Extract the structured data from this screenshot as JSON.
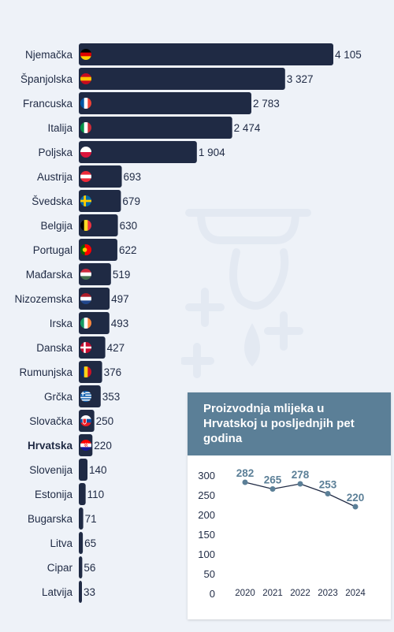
{
  "chart_data": [
    {
      "type": "bar",
      "orientation": "horizontal",
      "categories": [
        "Njemačka",
        "Španjolska",
        "Francuska",
        "Italija",
        "Poljska",
        "Austrija",
        "Švedska",
        "Belgija",
        "Portugal",
        "Mađarska",
        "Nizozemska",
        "Irska",
        "Danska",
        "Rumunjska",
        "Grčka",
        "Slovačka",
        "Hrvatska",
        "Slovenija",
        "Estonija",
        "Bugarska",
        "Litva",
        "Cipar",
        "Latvija"
      ],
      "values": [
        4105,
        3327,
        2783,
        2474,
        1904,
        693,
        679,
        630,
        622,
        519,
        497,
        493,
        427,
        376,
        353,
        250,
        220,
        140,
        110,
        71,
        65,
        56,
        33
      ],
      "value_labels": [
        "4 105",
        "3 327",
        "2 783",
        "2 474",
        "1 904",
        "693",
        "679",
        "630",
        "622",
        "519",
        "497",
        "493",
        "427",
        "376",
        "353",
        "250",
        "220",
        "140",
        "110",
        "71",
        "65",
        "56",
        "33"
      ],
      "highlight": "Hrvatska",
      "flags": [
        "de",
        "es",
        "fr",
        "it",
        "pl",
        "at",
        "se",
        "be",
        "pt",
        "hu",
        "nl",
        "ie",
        "dk",
        "ro",
        "gr",
        "sk",
        "hr"
      ],
      "bar_color": "#1f2a44"
    },
    {
      "type": "line",
      "title": "Proizvodnja mlijeka u Hrvatskoj u posljednjih pet godina",
      "x": [
        "2020",
        "2021",
        "2022",
        "2023",
        "2024"
      ],
      "values": [
        282,
        265,
        278,
        253,
        220
      ],
      "ylim": [
        0,
        300
      ],
      "yticks": [
        "300",
        "250",
        "200",
        "150",
        "100",
        "50",
        "0"
      ],
      "line_color": "#1f2a44",
      "marker_color": "#5b7f97",
      "header_color": "#5b7f97"
    }
  ]
}
